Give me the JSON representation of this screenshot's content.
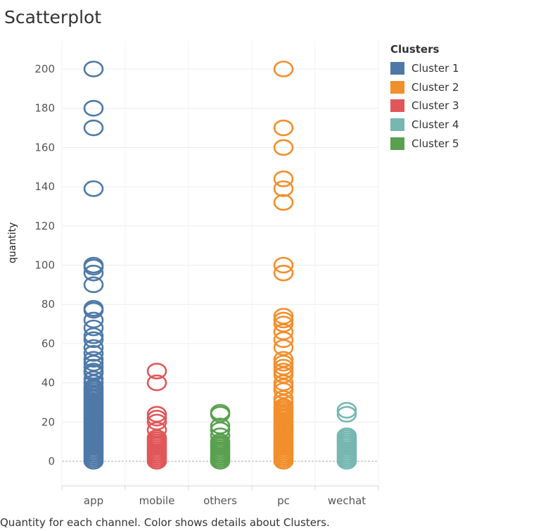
{
  "title": "Scatterplot",
  "caption": "Quantity for each channel.  Color shows details about Clusters.",
  "legend": {
    "title": "Clusters",
    "items": [
      {
        "label": "Cluster 1",
        "color": "#4e79a7"
      },
      {
        "label": "Cluster 2",
        "color": "#f28e2b"
      },
      {
        "label": "Cluster 3",
        "color": "#e15759"
      },
      {
        "label": "Cluster 4",
        "color": "#76b7b2"
      },
      {
        "label": "Cluster 5",
        "color": "#59a14f"
      }
    ]
  },
  "chart_data": {
    "type": "scatter",
    "title": "Scatterplot",
    "xlabel": "",
    "ylabel": "quantity",
    "categories": [
      "app",
      "mobile",
      "others",
      "pc",
      "wechat"
    ],
    "yticks": [
      0,
      20,
      40,
      60,
      80,
      100,
      120,
      140,
      160,
      180,
      200
    ],
    "ylim": [
      -12,
      212
    ],
    "grid": true,
    "legend_position": "top-right",
    "series": [
      {
        "name": "Cluster 1",
        "category": "app",
        "color": "#4e79a7",
        "values": [
          0,
          1,
          2,
          3,
          4,
          5,
          6,
          7,
          8,
          9,
          10,
          11,
          12,
          13,
          14,
          15,
          16,
          17,
          18,
          19,
          20,
          21,
          22,
          23,
          24,
          25,
          26,
          27,
          28,
          29,
          30,
          31,
          32,
          33,
          34,
          35,
          36,
          37,
          38,
          40,
          42,
          45,
          46,
          48,
          50,
          52,
          55,
          58,
          62,
          64,
          68,
          72,
          77,
          78,
          90,
          96,
          99,
          100,
          139,
          170,
          180,
          200
        ]
      },
      {
        "name": "Cluster 3",
        "category": "mobile",
        "color": "#e15759",
        "values": [
          0,
          1,
          2,
          3,
          4,
          5,
          6,
          7,
          8,
          9,
          10,
          11,
          12,
          16,
          20,
          22,
          24,
          40,
          46
        ]
      },
      {
        "name": "Cluster 5",
        "category": "others",
        "color": "#59a14f",
        "values": [
          0,
          1,
          2,
          3,
          4,
          5,
          6,
          7,
          8,
          9,
          10,
          13,
          16,
          18,
          24,
          25
        ]
      },
      {
        "name": "Cluster 2",
        "category": "pc",
        "color": "#f28e2b",
        "values": [
          0,
          1,
          2,
          3,
          4,
          5,
          6,
          7,
          8,
          9,
          10,
          11,
          12,
          13,
          14,
          15,
          16,
          17,
          18,
          19,
          20,
          21,
          22,
          23,
          24,
          25,
          26,
          27,
          28,
          30,
          32,
          36,
          38,
          40,
          44,
          46,
          48,
          50,
          52,
          58,
          62,
          66,
          70,
          72,
          74,
          96,
          100,
          132,
          139,
          144,
          160,
          170,
          200
        ]
      },
      {
        "name": "Cluster 4",
        "category": "wechat",
        "color": "#76b7b2",
        "values": [
          0,
          1,
          2,
          3,
          4,
          5,
          6,
          7,
          8,
          9,
          10,
          11,
          12,
          13,
          24,
          26
        ]
      }
    ]
  }
}
